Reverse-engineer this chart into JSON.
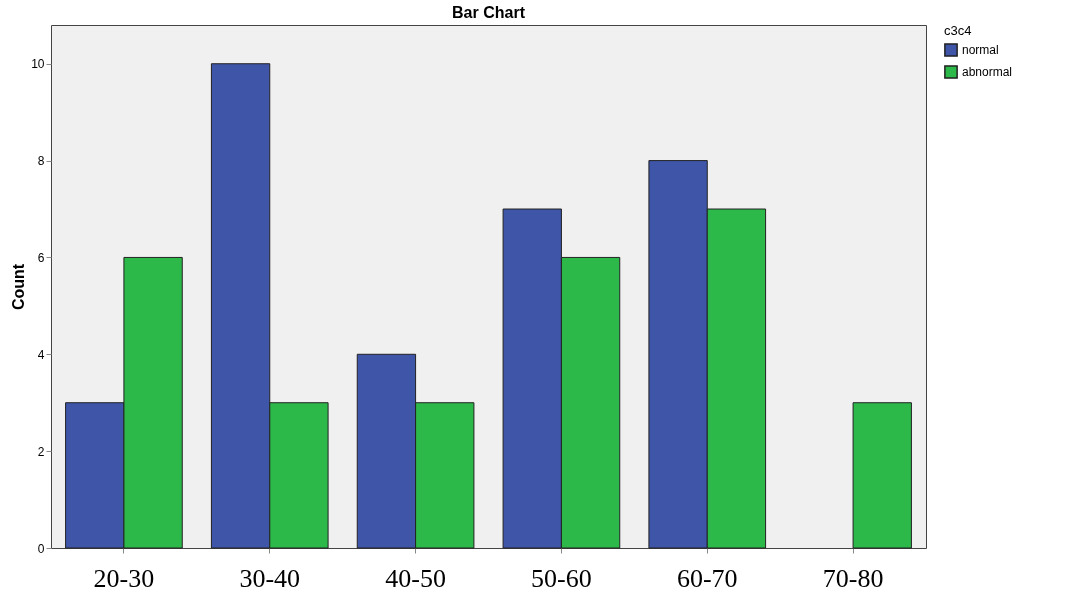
{
  "chart_data": {
    "type": "bar",
    "title": "Bar Chart",
    "ylabel": "Count",
    "legend_title": "c3c4",
    "categories": [
      "20-30",
      "30-40",
      "40-50",
      "50-60",
      "60-70",
      "70-80"
    ],
    "series": [
      {
        "name": "normal",
        "color": "#3e55a8",
        "values": [
          3,
          10,
          4,
          7,
          8,
          null
        ]
      },
      {
        "name": "abnormal",
        "color": "#2db84a",
        "values": [
          6,
          3,
          3,
          6,
          7,
          3
        ]
      }
    ],
    "ylim": [
      0,
      10.8
    ],
    "yticks": [
      0,
      2,
      4,
      6,
      8,
      10
    ],
    "grid": false,
    "legend": "top right"
  }
}
